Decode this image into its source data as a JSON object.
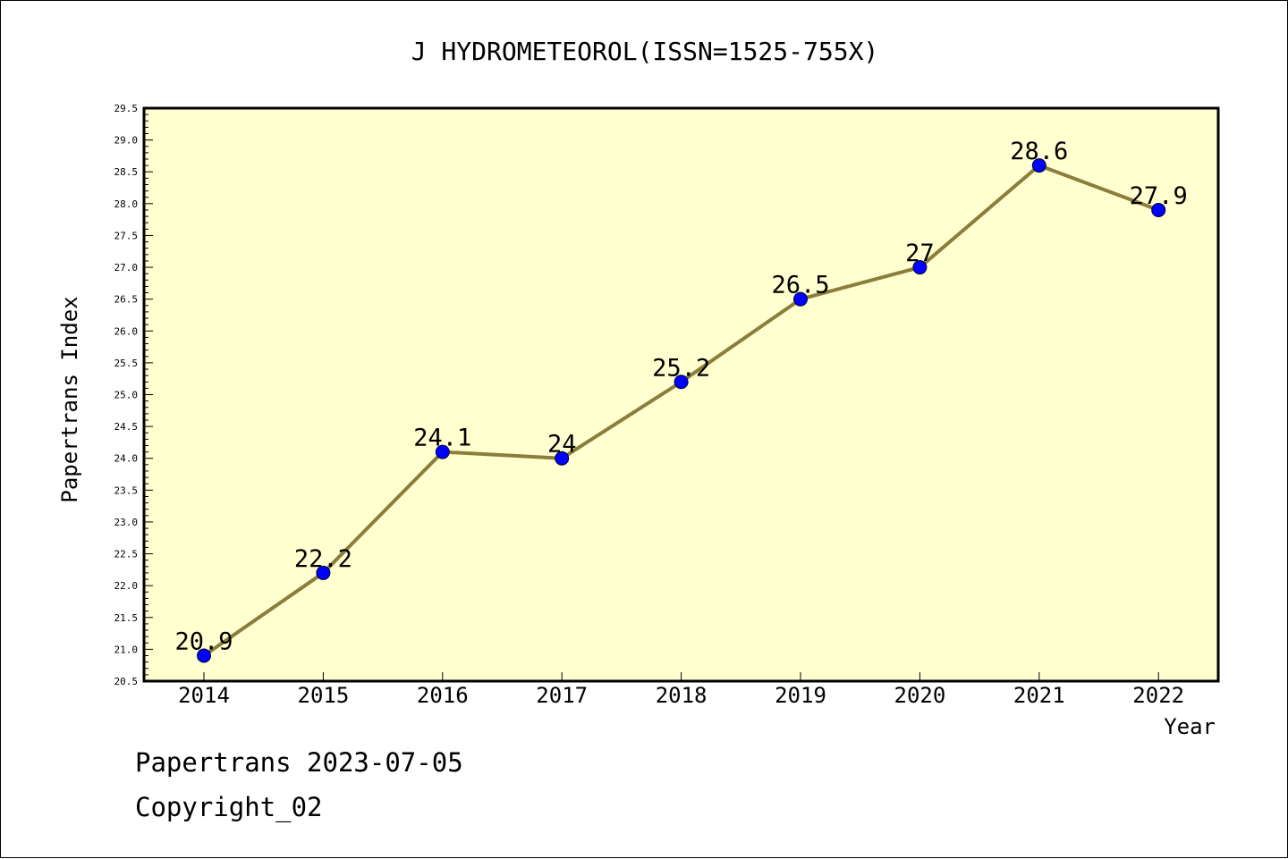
{
  "chart_data": {
    "type": "line",
    "title": "J HYDROMETEOROL(ISSN=1525-755X)",
    "xlabel": "Year",
    "ylabel": "Papertrans Index",
    "categories": [
      "2014",
      "2015",
      "2016",
      "2017",
      "2018",
      "2019",
      "2020",
      "2021",
      "2022"
    ],
    "series": [
      {
        "values": [
          20.9,
          22.2,
          24.1,
          24.0,
          25.2,
          26.5,
          27.0,
          28.6,
          27.9
        ],
        "labels": [
          "20.9",
          "22.2",
          "24.1",
          "24",
          "25.2",
          "26.5",
          "27",
          "28.6",
          "27.9"
        ]
      }
    ],
    "ylim": [
      20.5,
      29.5
    ],
    "yticks": [
      "20.5",
      "21.0",
      "21.5",
      "22.0",
      "22.5",
      "23.0",
      "23.5",
      "24.0",
      "24.5",
      "25.0",
      "25.5",
      "26.0",
      "26.5",
      "27.0",
      "27.5",
      "28.0",
      "28.5",
      "29.0",
      "29.5"
    ],
    "grid": false,
    "colors": {
      "line": "#8b7d3a",
      "marker": "#0000ff",
      "plot_background": "#ffffd0",
      "axis": "#000000"
    }
  },
  "footer": {
    "date_line": "Papertrans 2023-07-05",
    "copyright": "Copyright_02"
  }
}
